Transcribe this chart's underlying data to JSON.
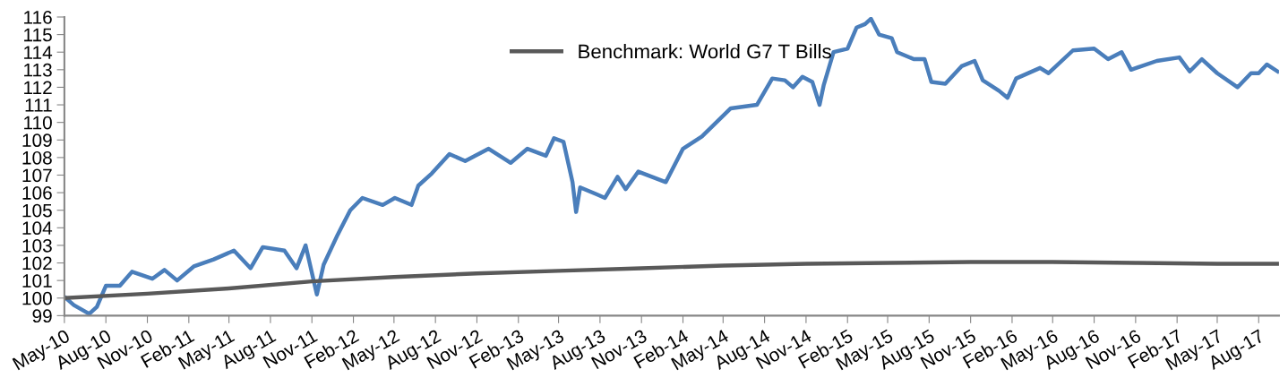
{
  "chart_data": {
    "type": "line",
    "ylim": [
      99,
      116
    ],
    "yticks": [
      99,
      100,
      101,
      102,
      103,
      104,
      105,
      106,
      107,
      108,
      109,
      110,
      111,
      112,
      113,
      114,
      115,
      116
    ],
    "xlim": [
      "2010-05-01",
      "2017-09-15"
    ],
    "xticks": [
      {
        "value": "2010-05-01",
        "label": "May-10"
      },
      {
        "value": "2010-08-01",
        "label": "Aug-10"
      },
      {
        "value": "2010-11-01",
        "label": "Nov-10"
      },
      {
        "value": "2011-02-01",
        "label": "Feb-11"
      },
      {
        "value": "2011-05-01",
        "label": "May-11"
      },
      {
        "value": "2011-08-01",
        "label": "Aug-11"
      },
      {
        "value": "2011-11-01",
        "label": "Nov-11"
      },
      {
        "value": "2012-02-01",
        "label": "Feb-12"
      },
      {
        "value": "2012-05-01",
        "label": "May-12"
      },
      {
        "value": "2012-08-01",
        "label": "Aug-12"
      },
      {
        "value": "2012-11-01",
        "label": "Nov-12"
      },
      {
        "value": "2013-02-01",
        "label": "Feb-13"
      },
      {
        "value": "2013-05-01",
        "label": "May-13"
      },
      {
        "value": "2013-08-01",
        "label": "Aug-13"
      },
      {
        "value": "2013-11-01",
        "label": "Nov-13"
      },
      {
        "value": "2014-02-01",
        "label": "Feb-14"
      },
      {
        "value": "2014-05-01",
        "label": "May-14"
      },
      {
        "value": "2014-08-01",
        "label": "Aug-14"
      },
      {
        "value": "2014-11-01",
        "label": "Nov-14"
      },
      {
        "value": "2015-02-01",
        "label": "Feb-15"
      },
      {
        "value": "2015-05-01",
        "label": "May-15"
      },
      {
        "value": "2015-08-01",
        "label": "Aug-15"
      },
      {
        "value": "2015-11-01",
        "label": "Nov-15"
      },
      {
        "value": "2016-02-01",
        "label": "Feb-16"
      },
      {
        "value": "2016-05-01",
        "label": "May-16"
      },
      {
        "value": "2016-08-01",
        "label": "Aug-16"
      },
      {
        "value": "2016-11-01",
        "label": "Nov-16"
      },
      {
        "value": "2017-02-01",
        "label": "Feb-17"
      },
      {
        "value": "2017-05-01",
        "label": "May-17"
      },
      {
        "value": "2017-08-01",
        "label": "Aug-17"
      }
    ],
    "grid": false,
    "legend": "top",
    "marker": "none",
    "line_style": "solid",
    "series": [
      {
        "color": "#4a7ebb",
        "x": [
          "2010-05-04",
          "2010-05-22",
          "2010-06-25",
          "2010-07-12",
          "2010-08-01",
          "2010-09-01",
          "2010-09-28",
          "2010-11-12",
          "2010-12-09",
          "2011-01-06",
          "2011-02-12",
          "2011-03-28",
          "2011-05-12",
          "2011-06-18",
          "2011-07-15",
          "2011-09-01",
          "2011-09-28",
          "2011-10-18",
          "2011-11-12",
          "2011-11-27",
          "2011-12-28",
          "2012-01-25",
          "2012-02-21",
          "2012-04-06",
          "2012-05-03",
          "2012-06-09",
          "2012-06-24",
          "2012-07-24",
          "2012-09-01",
          "2012-10-06",
          "2012-11-27",
          "2013-01-15",
          "2013-02-21",
          "2013-04-03",
          "2013-04-21",
          "2013-05-12",
          "2013-06-01",
          "2013-06-09",
          "2013-06-18",
          "2013-07-25",
          "2013-08-12",
          "2013-09-09",
          "2013-09-27",
          "2013-10-25",
          "2013-12-25",
          "2014-02-01",
          "2014-03-15",
          "2014-05-18",
          "2014-07-15",
          "2014-08-18",
          "2014-09-15",
          "2014-10-03",
          "2014-10-24",
          "2014-11-15",
          "2014-12-01",
          "2014-12-10",
          "2015-01-01",
          "2015-02-01",
          "2015-02-21",
          "2015-03-12",
          "2015-03-25",
          "2015-04-12",
          "2015-05-10",
          "2015-05-22",
          "2015-06-28",
          "2015-07-22",
          "2015-08-06",
          "2015-09-06",
          "2015-10-12",
          "2015-11-10",
          "2015-11-28",
          "2016-01-03",
          "2016-01-22",
          "2016-02-10",
          "2016-04-03",
          "2016-04-22",
          "2016-06-15",
          "2016-08-01",
          "2016-09-01",
          "2016-10-01",
          "2016-10-22",
          "2016-12-18",
          "2017-02-06",
          "2017-03-01",
          "2017-03-28",
          "2017-05-01",
          "2017-06-15",
          "2017-07-15",
          "2017-08-01",
          "2017-08-19",
          "2017-09-12"
        ],
        "values": [
          100.0,
          99.6,
          99.1,
          99.5,
          100.7,
          100.7,
          101.5,
          101.1,
          101.6,
          101.0,
          101.8,
          102.2,
          102.7,
          101.7,
          102.9,
          102.7,
          101.7,
          103.0,
          100.2,
          101.9,
          103.6,
          105.0,
          105.7,
          105.3,
          105.7,
          105.3,
          106.4,
          107.1,
          108.2,
          107.8,
          108.5,
          107.7,
          108.5,
          108.1,
          109.1,
          108.9,
          106.6,
          104.9,
          106.3,
          105.9,
          105.7,
          106.9,
          106.2,
          107.2,
          106.6,
          108.5,
          109.2,
          110.8,
          111.0,
          112.5,
          112.4,
          112.0,
          112.6,
          112.3,
          111.0,
          112.1,
          114.0,
          114.2,
          115.4,
          115.6,
          115.9,
          115.0,
          114.8,
          114.0,
          113.6,
          113.6,
          112.3,
          112.2,
          113.2,
          113.5,
          112.4,
          111.8,
          111.4,
          112.5,
          113.1,
          112.8,
          114.1,
          114.2,
          113.6,
          114.0,
          113.0,
          113.5,
          113.7,
          112.9,
          113.6,
          112.8,
          112.0,
          112.8,
          112.8,
          113.3,
          112.9
        ]
      },
      {
        "name": "Benchmark: World G7 T Bills",
        "color": "#595959",
        "x": [
          "2010-05-01",
          "2010-11-01",
          "2011-05-01",
          "2011-11-01",
          "2012-05-01",
          "2012-11-01",
          "2013-05-01",
          "2013-11-01",
          "2014-05-01",
          "2014-11-01",
          "2015-05-01",
          "2015-11-01",
          "2016-05-01",
          "2016-11-01",
          "2017-05-01",
          "2017-09-12"
        ],
        "values": [
          100.0,
          100.25,
          100.55,
          100.95,
          101.2,
          101.4,
          101.55,
          101.7,
          101.85,
          101.95,
          102.0,
          102.05,
          102.05,
          102.0,
          101.95,
          101.95
        ]
      }
    ]
  }
}
